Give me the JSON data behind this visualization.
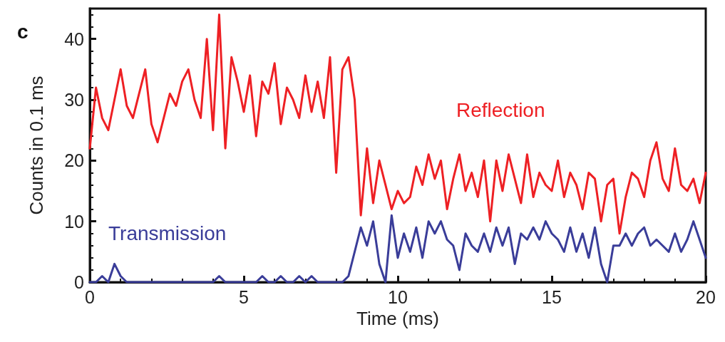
{
  "chart_data": {
    "type": "line",
    "xlabel": "Time (ms)",
    "ylabel": "Counts in 0.1 ms",
    "annotations": [
      "c"
    ],
    "x": [
      0,
      0.2,
      0.4,
      0.6,
      0.8,
      1,
      1.2,
      1.4,
      1.6,
      1.8,
      2,
      2.2,
      2.4,
      2.6,
      2.8,
      3,
      3.2,
      3.4,
      3.6,
      3.8,
      4,
      4.2,
      4.4,
      4.6,
      4.8,
      5,
      5.2,
      5.4,
      5.6,
      5.8,
      6,
      6.2,
      6.4,
      6.6,
      6.8,
      7,
      7.2,
      7.4,
      7.6,
      7.8,
      8,
      8.2,
      8.4,
      8.6,
      8.8,
      9,
      9.2,
      9.4,
      9.6,
      9.8,
      10,
      10.2,
      10.4,
      10.6,
      10.8,
      11,
      11.2,
      11.4,
      11.6,
      11.8,
      12,
      12.2,
      12.4,
      12.6,
      12.8,
      13,
      13.2,
      13.4,
      13.6,
      13.8,
      14,
      14.2,
      14.4,
      14.6,
      14.8,
      15,
      15.2,
      15.4,
      15.6,
      15.8,
      16,
      16.2,
      16.4,
      16.6,
      16.8,
      17,
      17.2,
      17.4,
      17.6,
      17.8,
      18,
      18.2,
      18.4,
      18.6,
      18.8,
      19,
      19.2,
      19.4,
      19.6,
      19.8,
      20
    ],
    "series": [
      {
        "name": "Reflection",
        "color": "#ee2024",
        "values": [
          22,
          32,
          27,
          25,
          30,
          35,
          29,
          27,
          31,
          35,
          26,
          23,
          27,
          31,
          29,
          33,
          35,
          30,
          27,
          40,
          25,
          44,
          22,
          37,
          33,
          28,
          34,
          24,
          33,
          31,
          36,
          26,
          32,
          30,
          27,
          34,
          28,
          33,
          27,
          37,
          18,
          35,
          37,
          30,
          11,
          22,
          13,
          20,
          16,
          12,
          15,
          13,
          14,
          19,
          16,
          21,
          17,
          20,
          12,
          17,
          21,
          15,
          18,
          14,
          20,
          10,
          20,
          15,
          21,
          17,
          13,
          21,
          14,
          18,
          16,
          15,
          20,
          14,
          18,
          16,
          12,
          18,
          17,
          10,
          16,
          17,
          8,
          14,
          18,
          17,
          14,
          20,
          23,
          17,
          15,
          22,
          16,
          15,
          17,
          13,
          18
        ]
      },
      {
        "name": "Transmission",
        "color": "#3a3d99",
        "values": [
          0,
          0,
          1,
          0,
          3,
          1,
          0,
          0,
          0,
          0,
          0,
          0,
          0,
          0,
          0,
          0,
          0,
          0,
          0,
          0,
          0,
          1,
          0,
          0,
          0,
          0,
          0,
          0,
          1,
          0,
          0,
          1,
          0,
          0,
          1,
          0,
          1,
          0,
          0,
          0,
          0,
          0,
          1,
          5,
          9,
          6,
          10,
          3,
          0,
          11,
          4,
          8,
          5,
          9,
          4,
          10,
          8,
          10,
          7,
          6,
          2,
          8,
          6,
          5,
          8,
          5,
          9,
          6,
          9,
          3,
          8,
          7,
          9,
          7,
          10,
          8,
          7,
          5,
          9,
          5,
          8,
          4,
          9,
          3,
          0,
          6,
          6,
          8,
          6,
          8,
          9,
          6,
          7,
          6,
          5,
          8,
          5,
          7,
          10,
          7,
          4
        ]
      }
    ],
    "xlim": [
      0,
      20
    ],
    "xticks": [
      0,
      5,
      10,
      15,
      20
    ],
    "ylim": [
      0,
      45
    ],
    "yticks": [
      0,
      10,
      20,
      30,
      40
    ],
    "grid": false,
    "legend": false,
    "marker": "none",
    "line_style": "solid"
  }
}
